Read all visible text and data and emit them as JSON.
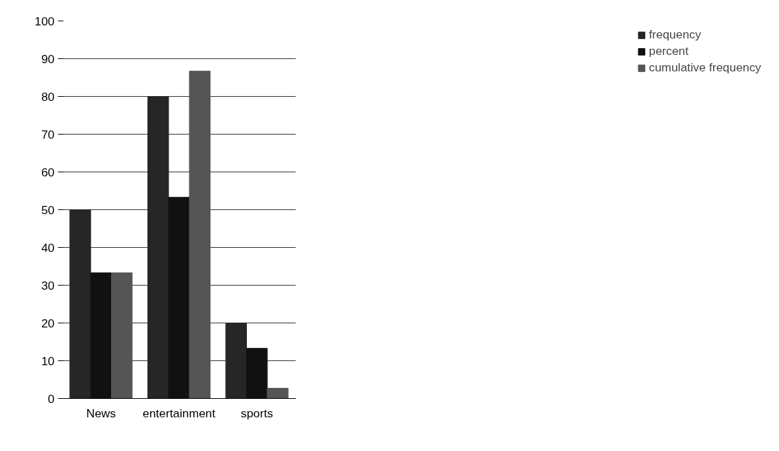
{
  "chart_data": {
    "type": "bar",
    "categories": [
      "News",
      "entertainment",
      "sports"
    ],
    "series": [
      {
        "name": "frequency",
        "color": "#262626",
        "values": [
          50,
          80,
          20
        ]
      },
      {
        "name": "percent",
        "color": "#111111",
        "values": [
          33.3,
          53.3,
          13.3
        ]
      },
      {
        "name": "cumulative frequency",
        "color": "#555555",
        "values": [
          33.3,
          86.7,
          2.7
        ]
      }
    ],
    "ylim": [
      0,
      100
    ],
    "yticks": [
      0,
      10,
      20,
      30,
      40,
      50,
      60,
      70,
      80,
      90,
      100
    ],
    "grid": "y",
    "legend": "right"
  }
}
